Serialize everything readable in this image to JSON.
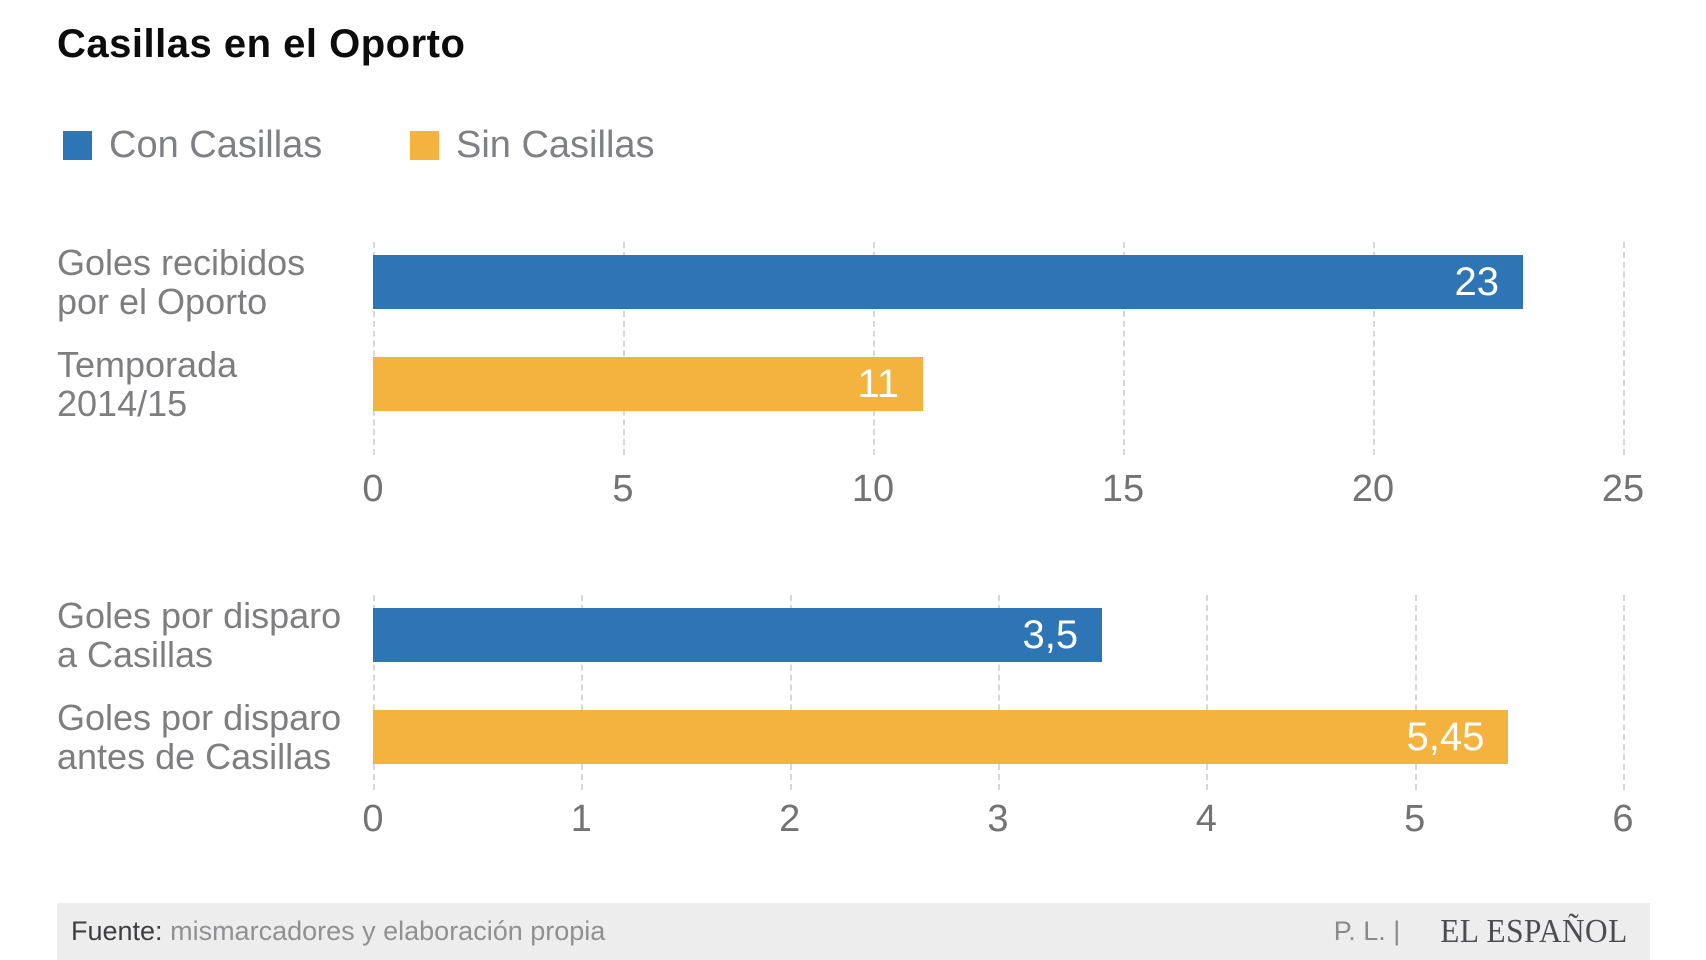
{
  "page": {
    "title": "Casillas en el Oporto"
  },
  "legend": {
    "items": [
      {
        "label": "Con Casillas",
        "color": "#2e75b5"
      },
      {
        "label": "Sin Casillas",
        "color": "#f4b33e"
      }
    ]
  },
  "colors": {
    "blue": "#2e75b5",
    "yellow": "#f4b33e",
    "gridline": "#d7d7d7",
    "label_gray": "#7e7e80",
    "footer_bg": "#ededee"
  },
  "chart_data": [
    {
      "type": "bar",
      "orientation": "horizontal",
      "title": "",
      "xlabel": "",
      "ylabel": "",
      "grid": "vertical-dashed",
      "legend_position": "top-left",
      "categories": [
        "Goles recibidos por el Oporto",
        "Temporada 2014/15"
      ],
      "category_lines": [
        [
          "Goles recibidos",
          "por el Oporto"
        ],
        [
          "Temporada",
          "2014/15"
        ]
      ],
      "series_names": [
        "Con Casillas",
        "Sin Casillas"
      ],
      "values": [
        23,
        11
      ],
      "value_labels": [
        "23",
        "11"
      ],
      "bar_colors": [
        "#2e75b5",
        "#f4b33e"
      ],
      "xlim": [
        0,
        25
      ],
      "xticks": [
        0,
        5,
        10,
        15,
        20,
        25
      ]
    },
    {
      "type": "bar",
      "orientation": "horizontal",
      "title": "",
      "xlabel": "",
      "ylabel": "",
      "grid": "vertical-dashed",
      "legend_position": "top-left",
      "categories": [
        "Goles por disparo a Casillas",
        "Goles por disparo antes de Casillas"
      ],
      "category_lines": [
        [
          "Goles por disparo",
          "a Casillas"
        ],
        [
          "Goles por disparo",
          "antes de Casillas"
        ]
      ],
      "series_names": [
        "Con Casillas",
        "Sin Casillas"
      ],
      "values": [
        3.5,
        5.45
      ],
      "value_labels": [
        "3,5",
        "5,45"
      ],
      "bar_colors": [
        "#2e75b5",
        "#f4b33e"
      ],
      "xlim": [
        0,
        6
      ],
      "xticks": [
        0,
        1,
        2,
        3,
        4,
        5,
        6
      ]
    }
  ],
  "footer": {
    "source_label": "Fuente:",
    "source_text": "mismarcadores y elaboración propia",
    "credit": "P. L. |",
    "brand": "EL ESPAÑOL"
  }
}
